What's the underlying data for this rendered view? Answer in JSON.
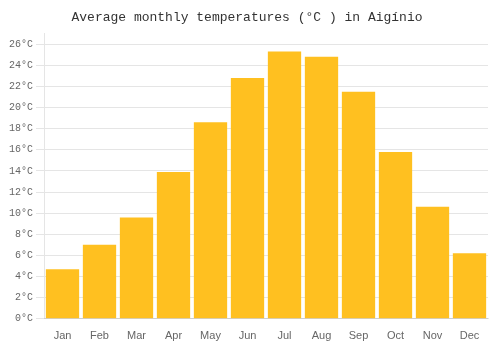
{
  "chart_data": {
    "type": "bar",
    "title": "Average monthly temperatures (°C ) in Aigínio",
    "categories": [
      "Jan",
      "Feb",
      "Mar",
      "Apr",
      "May",
      "Jun",
      "Jul",
      "Aug",
      "Sep",
      "Oct",
      "Nov",
      "Dec"
    ],
    "values": [
      4.7,
      7.0,
      9.6,
      13.9,
      18.6,
      22.8,
      25.3,
      24.8,
      21.5,
      15.8,
      10.6,
      6.2
    ],
    "color": "#FFC020",
    "ylim": [
      0,
      27
    ],
    "yticks": [
      {
        "value": 0,
        "label": "0°C"
      },
      {
        "value": 2,
        "label": "2°C"
      },
      {
        "value": 4,
        "label": "4°C"
      },
      {
        "value": 6,
        "label": "6°C"
      },
      {
        "value": 8,
        "label": "8°C"
      },
      {
        "value": 10,
        "label": "10°C"
      },
      {
        "value": 12,
        "label": "12°C"
      },
      {
        "value": 14,
        "label": "14°C"
      },
      {
        "value": 16,
        "label": "16°C"
      },
      {
        "value": 18,
        "label": "18°C"
      },
      {
        "value": 20,
        "label": "20°C"
      },
      {
        "value": 22,
        "label": "22°C"
      },
      {
        "value": 24,
        "label": "24°C"
      },
      {
        "value": 26,
        "label": "26°C"
      }
    ],
    "grid": true
  }
}
